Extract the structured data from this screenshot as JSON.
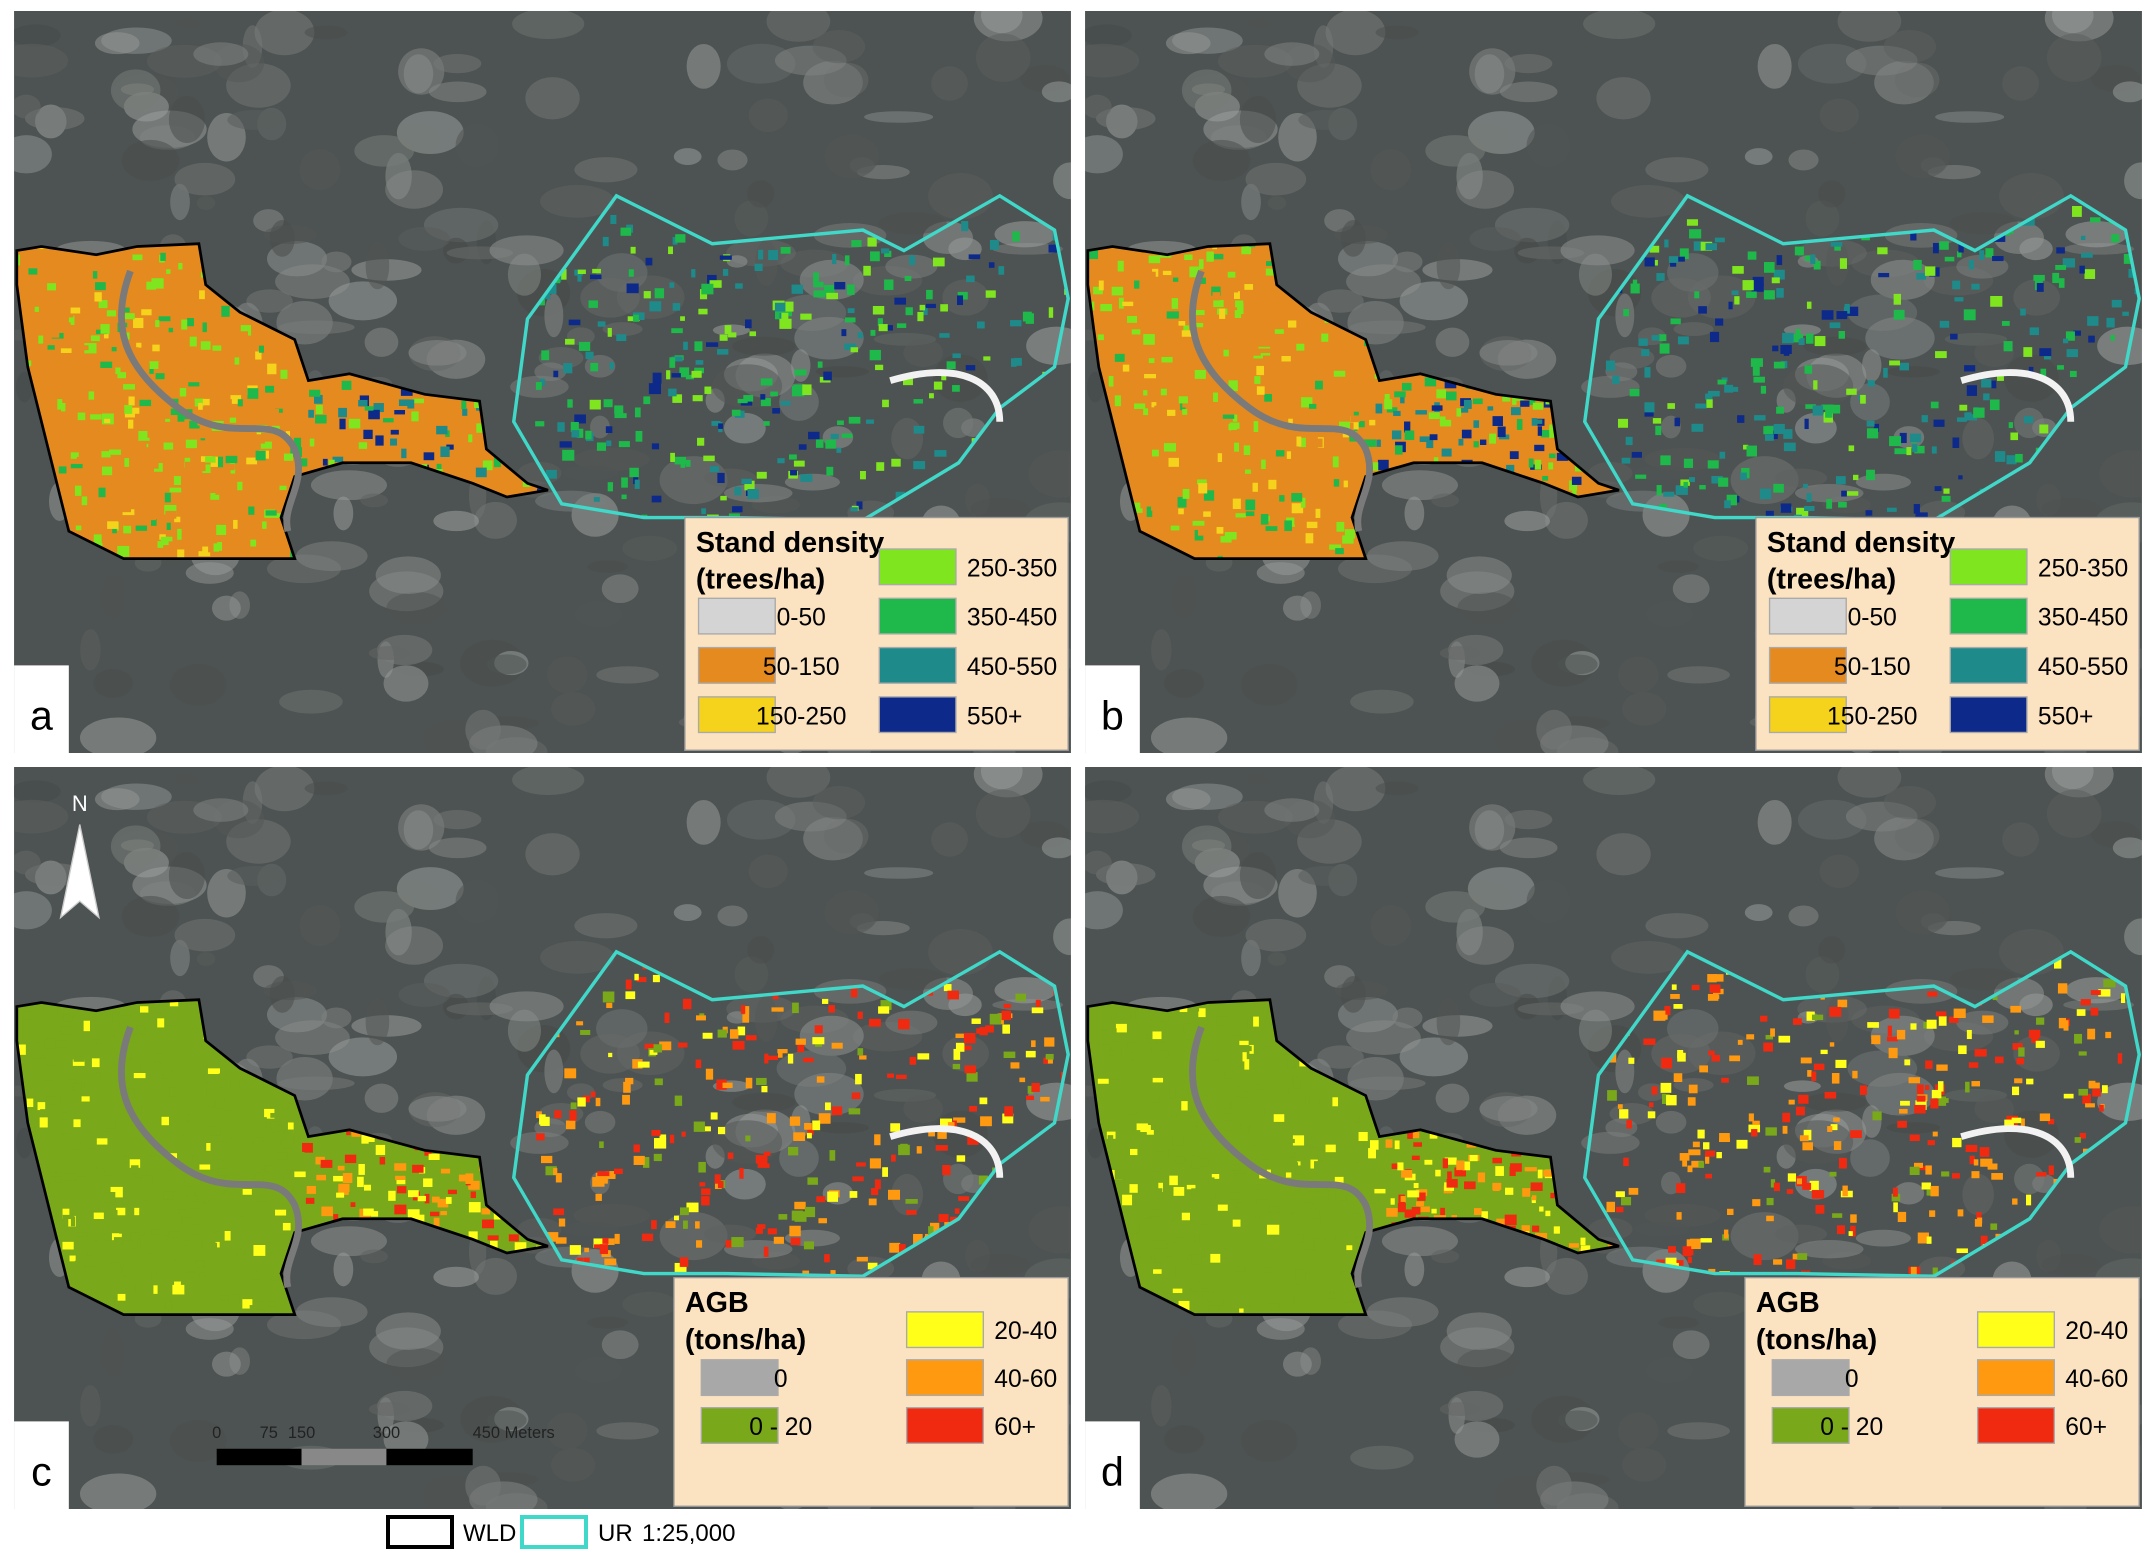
{
  "panels": [
    {
      "label": "a",
      "legend": {
        "title": "Stand density",
        "unit": "(trees/ha)",
        "items": [
          {
            "label": "0-50",
            "color": "#d4d4d4"
          },
          {
            "label": "50-150",
            "color": "#e58a1f"
          },
          {
            "label": "150-250",
            "color": "#f5d21c"
          },
          {
            "label": "250-350",
            "color": "#7fe51f"
          },
          {
            "label": "350-450",
            "color": "#1fb84a"
          },
          {
            "label": "450-550",
            "color": "#1f8a8a"
          },
          {
            "label": "550+",
            "color": "#0d2a8a"
          }
        ]
      }
    },
    {
      "label": "b",
      "legend": {
        "title": "Stand density",
        "unit": "(trees/ha)",
        "items": [
          {
            "label": "0-50",
            "color": "#d4d4d4"
          },
          {
            "label": "50-150",
            "color": "#e58a1f"
          },
          {
            "label": "150-250",
            "color": "#f5d21c"
          },
          {
            "label": "250-350",
            "color": "#7fe51f"
          },
          {
            "label": "350-450",
            "color": "#1fb84a"
          },
          {
            "label": "450-550",
            "color": "#1f8a8a"
          },
          {
            "label": "550+",
            "color": "#0d2a8a"
          }
        ]
      }
    },
    {
      "label": "c",
      "legend": {
        "title": "AGB",
        "unit": "(tons/ha)",
        "items": [
          {
            "label": "0",
            "color": "#a8a8a8"
          },
          {
            "label": "0 - 20",
            "color": "#79a81a"
          },
          {
            "label": "20-40",
            "color": "#ffff1a"
          },
          {
            "label": "40-60",
            "color": "#ff9a10"
          },
          {
            "label": "60+",
            "color": "#f02a10"
          }
        ]
      }
    },
    {
      "label": "d",
      "legend": {
        "title": "AGB",
        "unit": "(tons/ha)",
        "items": [
          {
            "label": "0",
            "color": "#a8a8a8"
          },
          {
            "label": "0 - 20",
            "color": "#79a81a"
          },
          {
            "label": "20-40",
            "color": "#ffff1a"
          },
          {
            "label": "40-60",
            "color": "#ff9a10"
          },
          {
            "label": "60+",
            "color": "#f02a10"
          }
        ]
      }
    }
  ],
  "north_arrow": "N",
  "scale_bar": [
    "0",
    "75",
    "150",
    "300",
    "450 Meters"
  ],
  "map_legend": {
    "wld": "WLD",
    "ur": "UR",
    "scale": "1:25,000"
  }
}
